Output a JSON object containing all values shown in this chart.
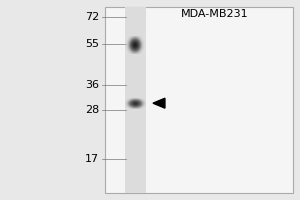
{
  "title": "MDA-MB231",
  "overall_bg": "#e8e8e8",
  "gel_bg": "#f0f0f0",
  "lane_bg": "#d8d8d8",
  "mw_markers": [
    72,
    55,
    36,
    28,
    17
  ],
  "band1_kda": 54,
  "band2_kda": 30,
  "title_fontsize": 8,
  "marker_fontsize": 8,
  "arrow_color": "#111111",
  "band1_color": "#111111",
  "band2_color": "#222222"
}
